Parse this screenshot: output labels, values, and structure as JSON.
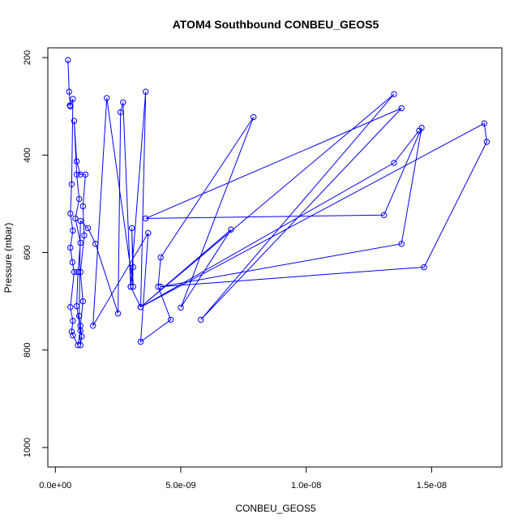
{
  "chart_data": {
    "type": "line",
    "title": "ATOM4 Southbound CONBEU_GEOS5",
    "xlabel": "CONBEU_GEOS5",
    "ylabel": "Pressure (mbar)",
    "xlim": [
      -3e-10,
      1.78e-08
    ],
    "ylim": [
      1040,
      180
    ],
    "y_inverted": true,
    "x_ticks": [
      0,
      5e-09,
      1e-08,
      1.5e-08
    ],
    "x_tick_labels": [
      "0.0e+00",
      "5.0e-09",
      "1.0e-08",
      "1.5e-08"
    ],
    "y_ticks": [
      200,
      400,
      600,
      800,
      1000
    ],
    "y_tick_labels": [
      "200",
      "400",
      "600",
      "800",
      "1000"
    ],
    "series": [
      {
        "color": "#0000ff",
        "marker": "open-circle",
        "points": [
          {
            "x": 5e-10,
            "y": 205
          },
          {
            "x": 5.5e-10,
            "y": 270
          },
          {
            "x": 6e-10,
            "y": 300
          },
          {
            "x": 5.8e-10,
            "y": 298
          },
          {
            "x": 7e-10,
            "y": 285
          },
          {
            "x": 6.5e-10,
            "y": 460
          },
          {
            "x": 6e-10,
            "y": 520
          },
          {
            "x": 7e-10,
            "y": 555
          },
          {
            "x": 6e-10,
            "y": 590
          },
          {
            "x": 6.8e-10,
            "y": 620
          },
          {
            "x": 7.5e-10,
            "y": 640
          },
          {
            "x": 6e-10,
            "y": 712
          },
          {
            "x": 7e-10,
            "y": 740
          },
          {
            "x": 6.5e-10,
            "y": 762
          },
          {
            "x": 7e-10,
            "y": 770
          },
          {
            "x": 9e-10,
            "y": 790
          },
          {
            "x": 1e-09,
            "y": 760
          },
          {
            "x": 8.5e-10,
            "y": 710
          },
          {
            "x": 9e-10,
            "y": 640
          },
          {
            "x": 1e-09,
            "y": 580
          },
          {
            "x": 8e-10,
            "y": 530
          },
          {
            "x": 9.5e-10,
            "y": 490
          },
          {
            "x": 8.5e-10,
            "y": 440
          },
          {
            "x": 7.5e-10,
            "y": 330
          },
          {
            "x": 8.5e-10,
            "y": 413
          },
          {
            "x": 1e-09,
            "y": 440
          },
          {
            "x": 1.2e-09,
            "y": 440
          },
          {
            "x": 1.1e-09,
            "y": 505
          },
          {
            "x": 1.15e-09,
            "y": 565
          },
          {
            "x": 1e-09,
            "y": 640
          },
          {
            "x": 1.1e-09,
            "y": 700
          },
          {
            "x": 1e-09,
            "y": 750
          },
          {
            "x": 1.05e-09,
            "y": 772
          },
          {
            "x": 1e-09,
            "y": 790
          },
          {
            "x": 9.5e-10,
            "y": 730
          },
          {
            "x": 1e-09,
            "y": 535
          },
          {
            "x": 1.3e-09,
            "y": 550
          },
          {
            "x": 1.6e-09,
            "y": 582
          },
          {
            "x": 2.5e-09,
            "y": 725
          },
          {
            "x": 2.6e-09,
            "y": 312
          },
          {
            "x": 2.7e-09,
            "y": 292
          },
          {
            "x": 3e-09,
            "y": 670
          },
          {
            "x": 3.6e-09,
            "y": 270
          },
          {
            "x": 3.4e-09,
            "y": 712
          },
          {
            "x": 3e-09,
            "y": 670
          },
          {
            "x": 3.1e-09,
            "y": 630
          },
          {
            "x": 3.05e-09,
            "y": 550
          },
          {
            "x": 3.1e-09,
            "y": 670
          },
          {
            "x": 2.05e-09,
            "y": 283
          },
          {
            "x": 1.5e-09,
            "y": 750
          },
          {
            "x": 3.7e-09,
            "y": 560
          },
          {
            "x": 3.4e-09,
            "y": 783
          },
          {
            "x": 4.6e-09,
            "y": 738
          },
          {
            "x": 4.1e-09,
            "y": 670
          },
          {
            "x": 4.2e-09,
            "y": 610
          },
          {
            "x": 7.9e-09,
            "y": 322
          },
          {
            "x": 5e-09,
            "y": 713
          },
          {
            "x": 7e-09,
            "y": 553
          },
          {
            "x": 3.4e-09,
            "y": 712
          },
          {
            "x": 1.35e-08,
            "y": 275
          },
          {
            "x": 5.8e-09,
            "y": 738
          },
          {
            "x": 1.38e-08,
            "y": 304
          },
          {
            "x": 3.6e-09,
            "y": 530
          },
          {
            "x": 1.31e-08,
            "y": 523
          },
          {
            "x": 1.46e-08,
            "y": 344
          },
          {
            "x": 1.38e-08,
            "y": 582
          },
          {
            "x": 4.2e-09,
            "y": 670
          },
          {
            "x": 1.47e-08,
            "y": 630
          },
          {
            "x": 1.72e-08,
            "y": 373
          },
          {
            "x": 1.71e-08,
            "y": 335
          },
          {
            "x": 3.4e-09,
            "y": 712
          },
          {
            "x": 1.35e-08,
            "y": 416
          },
          {
            "x": 1.45e-08,
            "y": 350
          }
        ]
      }
    ]
  }
}
